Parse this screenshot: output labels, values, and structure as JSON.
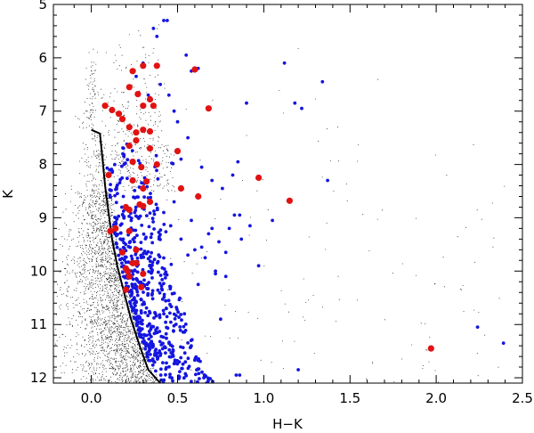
{
  "chart_data": {
    "type": "scatter",
    "xlabel": "H−K",
    "ylabel": "K",
    "xlim": [
      -0.22,
      2.5
    ],
    "ylim": [
      12.1,
      5.0
    ],
    "y_inverted": true,
    "grid": false,
    "x_ticks": [
      0.0,
      0.5,
      1.0,
      1.5,
      2.0,
      2.5
    ],
    "x_tick_labels": [
      "0.0",
      "0.5",
      "1.0",
      "1.5",
      "2.0",
      "2.5"
    ],
    "y_ticks": [
      5,
      6,
      7,
      8,
      9,
      10,
      11,
      12
    ],
    "y_tick_labels": [
      "5",
      "6",
      "7",
      "8",
      "9",
      "10",
      "11",
      "12"
    ],
    "colors": {
      "field": "#000000",
      "blue": "#1515e0",
      "red": "#e11212",
      "line": "#000000"
    },
    "series": [
      {
        "style": "black-line",
        "x": [
          0.0,
          0.05,
          0.065,
          0.08,
          0.1,
          0.12,
          0.15,
          0.19,
          0.23,
          0.28,
          0.33,
          0.4
        ],
        "y": [
          7.35,
          7.42,
          7.9,
          8.4,
          8.9,
          9.4,
          9.9,
          10.4,
          10.9,
          11.4,
          11.85,
          12.1
        ]
      },
      {
        "style": "red-large-dots",
        "x": [
          0.08,
          0.12,
          0.16,
          0.18,
          0.24,
          0.3,
          0.22,
          0.27,
          0.34,
          0.3,
          0.38,
          0.3,
          0.22,
          0.26,
          0.34,
          0.6,
          0.36,
          0.3,
          0.68,
          0.22,
          0.26,
          0.34,
          0.24,
          0.29,
          0.5,
          0.38,
          0.1,
          0.32,
          0.52,
          0.24,
          0.28,
          0.62,
          0.34,
          0.2,
          0.22,
          0.3,
          0.97,
          1.15,
          0.11,
          0.14,
          0.18,
          0.26,
          0.22,
          0.26,
          0.29,
          0.2,
          0.22,
          0.21,
          0.24,
          0.2,
          0.3,
          1.97
        ],
        "y": [
          6.9,
          6.98,
          7.05,
          7.15,
          6.25,
          6.15,
          6.55,
          6.68,
          6.78,
          6.9,
          6.15,
          7.35,
          7.3,
          7.4,
          7.38,
          6.22,
          6.9,
          8.45,
          6.95,
          7.65,
          7.55,
          7.7,
          7.95,
          8.05,
          7.75,
          8.0,
          8.2,
          8.32,
          8.45,
          8.3,
          8.75,
          8.6,
          8.7,
          8.8,
          8.85,
          8.78,
          8.25,
          8.68,
          9.25,
          9.2,
          9.65,
          9.6,
          9.25,
          9.85,
          10.3,
          9.95,
          10.1,
          10.0,
          9.85,
          10.35,
          10.05,
          11.45
        ]
      },
      {
        "style": "blue-small-dots",
        "x": [
          0.42,
          0.44,
          0.36,
          0.38,
          0.55,
          0.62,
          0.58,
          0.3,
          0.26,
          0.4,
          0.33,
          0.45,
          0.48,
          0.5,
          0.56,
          0.52,
          0.64,
          0.7,
          0.76,
          0.85,
          0.82,
          1.12,
          1.34,
          1.18,
          1.22,
          1.37,
          0.9,
          1.05,
          0.86,
          0.92,
          0.68,
          0.74,
          0.6,
          0.66,
          0.72,
          0.78,
          0.97,
          0.72,
          0.75,
          0.84,
          1.2,
          2.24,
          2.39,
          0.86,
          0.42,
          0.46,
          0.52,
          0.58,
          0.64,
          0.56,
          0.48,
          0.7,
          0.62,
          0.78,
          0.8,
          0.83,
          0.87
        ],
        "y": [
          5.3,
          5.3,
          5.45,
          5.6,
          5.95,
          6.2,
          6.25,
          6.1,
          6.35,
          6.5,
          6.7,
          6.7,
          7.0,
          7.2,
          7.5,
          7.9,
          8.05,
          8.3,
          8.45,
          7.95,
          8.2,
          6.1,
          6.45,
          6.85,
          6.95,
          8.3,
          6.85,
          9.05,
          8.95,
          9.15,
          9.3,
          9.45,
          9.6,
          9.75,
          10.0,
          10.1,
          9.9,
          10.05,
          10.9,
          11.95,
          11.85,
          11.05,
          11.35,
          11.95,
          8.9,
          9.15,
          9.4,
          9.05,
          9.55,
          9.7,
          8.7,
          9.2,
          10.25,
          9.65,
          9.2,
          8.95,
          9.4
        ],
        "band": {
          "k_min": 5.3,
          "k_max": 12.1,
          "extra_dots": 560,
          "offset_max": 0.3
        }
      },
      {
        "style": "black-field-points",
        "band": {
          "k_min": 5.3,
          "k_max": 12.1,
          "count": 9000,
          "density_peak_k": 11.8
        }
      }
    ]
  }
}
